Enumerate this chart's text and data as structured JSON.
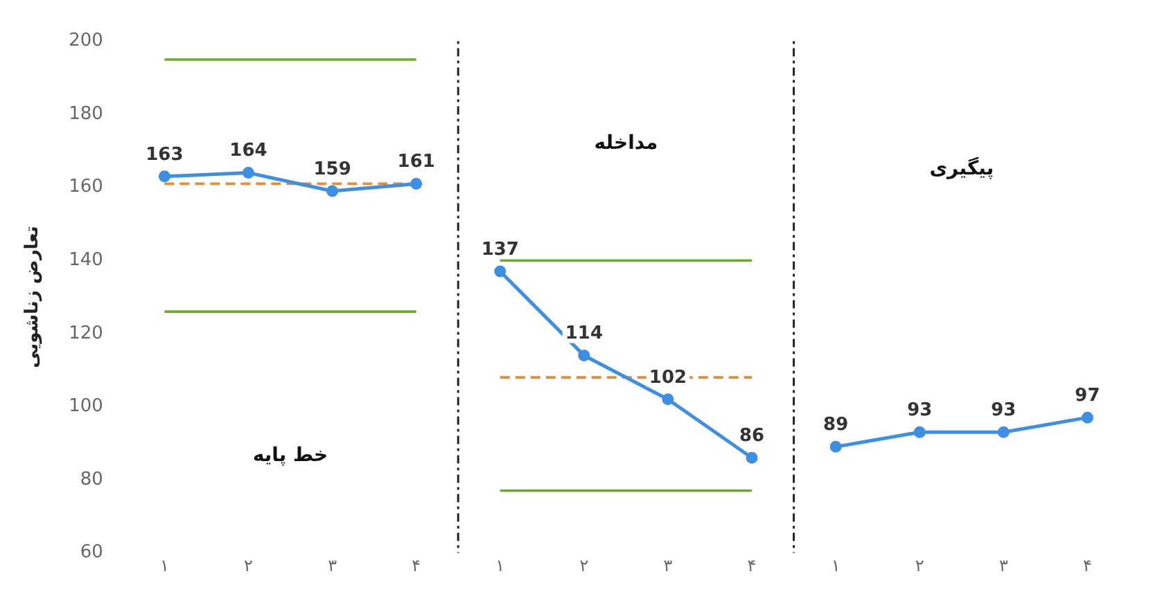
{
  "chart_data": {
    "type": "line",
    "ylabel": "تعارض زناشویی",
    "categories": [
      "۱",
      "۲",
      "۳",
      "۴",
      "۱",
      "۲",
      "۳",
      "۴",
      "۱",
      "۲",
      "۳",
      "۴"
    ],
    "ylim": [
      60,
      200
    ],
    "yticks": [
      60,
      80,
      100,
      120,
      140,
      160,
      180,
      200
    ],
    "grid": false,
    "legend": false,
    "marker": "circle",
    "series": [
      {
        "color": "#3d8fe3",
        "values": [
          163,
          164,
          159,
          161,
          null,
          null,
          null,
          null,
          null,
          null,
          null,
          null
        ],
        "value_labels": [
          "163",
          "164",
          "159",
          "161",
          null,
          null,
          null,
          null,
          null,
          null,
          null,
          null
        ]
      },
      {
        "color": "#3d8fe3",
        "values": [
          null,
          null,
          null,
          null,
          137,
          114,
          102,
          86,
          null,
          null,
          null,
          null
        ],
        "value_labels": [
          null,
          null,
          null,
          null,
          "137",
          "114",
          "102",
          "86",
          null,
          null,
          null,
          null
        ]
      },
      {
        "color": "#3d8fe3",
        "values": [
          null,
          null,
          null,
          null,
          null,
          null,
          null,
          null,
          89,
          93,
          93,
          97
        ],
        "value_labels": [
          null,
          null,
          null,
          null,
          null,
          null,
          null,
          null,
          "89",
          "93",
          "93",
          "97"
        ]
      },
      {
        "color": "#6aab2c",
        "marker": "none",
        "line_style": "solid",
        "values": [
          195,
          195,
          195,
          195,
          null,
          null,
          null,
          null,
          null,
          null,
          null,
          null
        ]
      },
      {
        "color": "#6aab2c",
        "marker": "none",
        "line_style": "solid",
        "values": [
          126,
          126,
          126,
          126,
          null,
          null,
          null,
          null,
          null,
          null,
          null,
          null
        ]
      },
      {
        "color": "#f0882c",
        "marker": "none",
        "line_style": "dashed",
        "values": [
          161,
          161,
          161,
          161,
          null,
          null,
          null,
          null,
          null,
          null,
          null,
          null
        ]
      },
      {
        "color": "#6aab2c",
        "marker": "none",
        "line_style": "solid",
        "values": [
          null,
          null,
          null,
          null,
          140,
          140,
          140,
          140,
          null,
          null,
          null,
          null
        ]
      },
      {
        "color": "#6aab2c",
        "marker": "none",
        "line_style": "solid",
        "values": [
          null,
          null,
          null,
          null,
          77,
          77,
          77,
          77,
          null,
          null,
          null,
          null
        ]
      },
      {
        "color": "#f0882c",
        "marker": "none",
        "line_style": "dashed",
        "values": [
          null,
          null,
          null,
          null,
          108,
          108,
          108,
          108,
          null,
          null,
          null,
          null
        ]
      }
    ],
    "annotations": [
      "خط پایه",
      "مداخله",
      "پیگیری"
    ]
  }
}
